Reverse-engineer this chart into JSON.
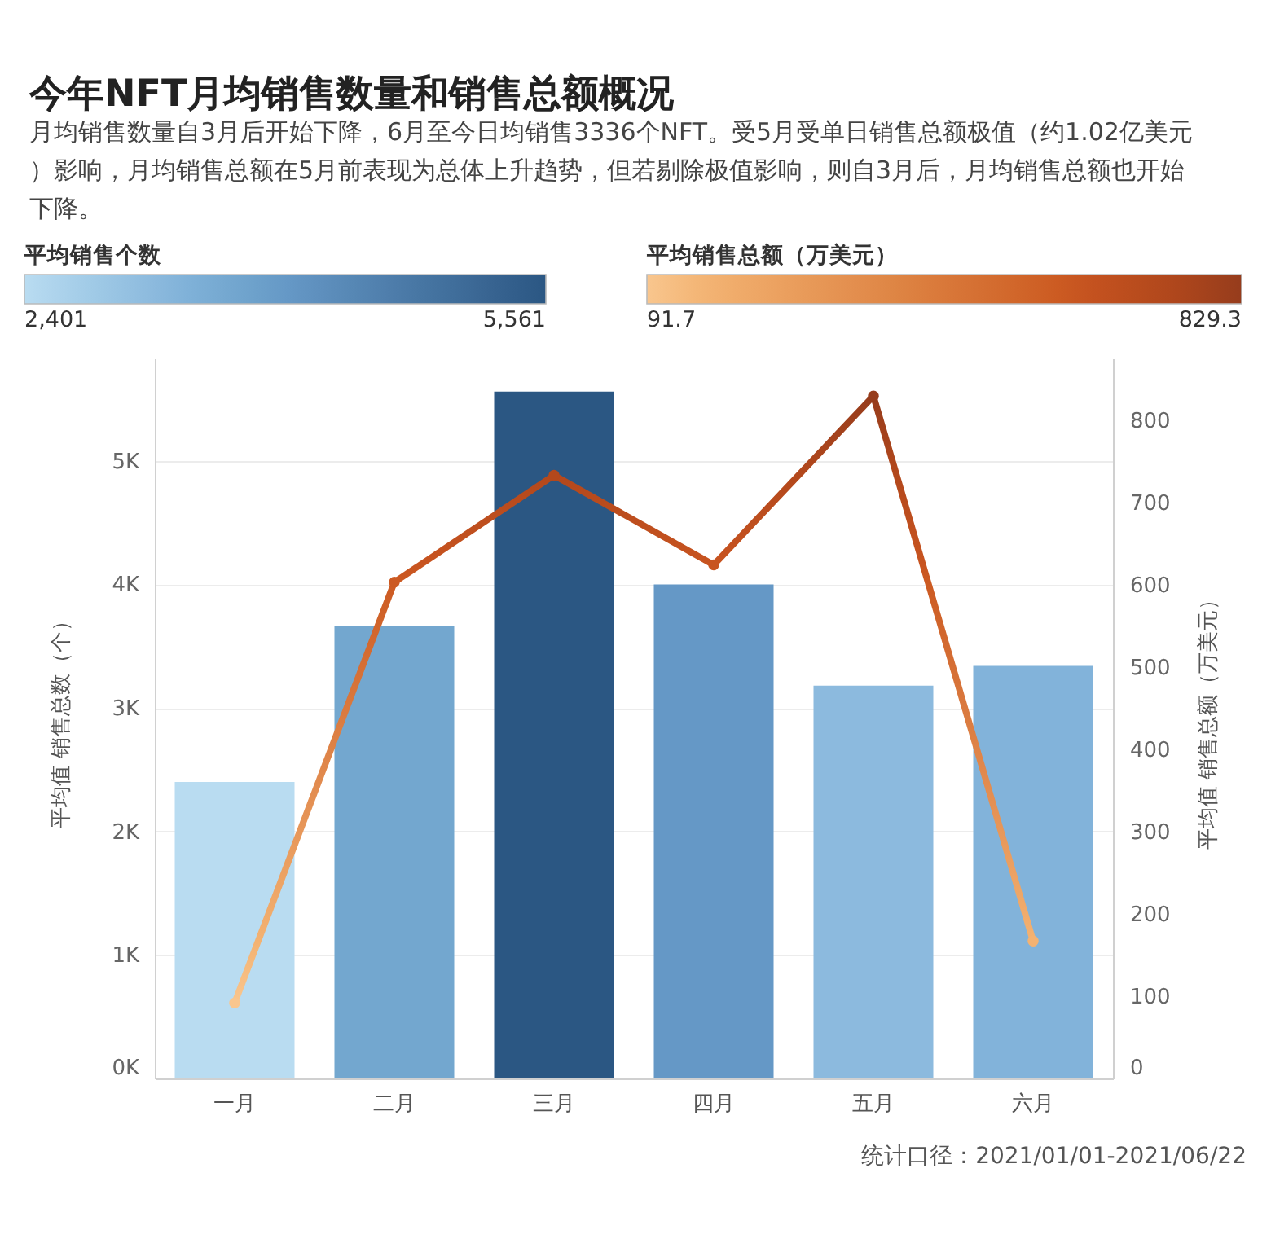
{
  "chart_data": {
    "type": "bar",
    "title": "今年NFT月均销售数量和销售总额概况",
    "subtitle": "月均销售数量自3月后开始下降，6月至今日均销售3336个NFT。受5月受单日销售总额极值（约1.02亿美元）影响，月均销售总额在5月前表现为总体上升趋势，但若剔除极值影响，则自3月后，月均销售总额也开始下降。",
    "categories": [
      "一月",
      "二月",
      "三月",
      "四月",
      "五月",
      "六月"
    ],
    "series": [
      {
        "values": [
          2401,
          3660,
          5561,
          4000,
          3180,
          3340
        ],
        "colors": [
          "#b9dcf1",
          "#73a7cf",
          "#2b5783",
          "#6598c6",
          "#8cbade",
          "#82b3da"
        ]
      },
      {
        "name": "平均销售总额（万美元）",
        "type": "line",
        "axis": "y2",
        "values": [
          91.7,
          603,
          733,
          624,
          829.3,
          167
        ],
        "colors": [
          "#f9c68e",
          "#cc5a22",
          "#b3481c",
          "#c85420",
          "#963c1c",
          "#f3b272"
        ]
      }
    ],
    "clabel": "平均销售个数",
    "clim": [
      2401,
      5561
    ],
    "cticks": [
      {
        "value": 2401,
        "label": "2,401"
      },
      {
        "value": 5561,
        "label": "5,561"
      }
    ],
    "ylabel": "平均值 销售总数（个）",
    "y2label": "平均值 销售总额（万美元）",
    "ylim": [
      0,
      5830
    ],
    "yticks": [
      {
        "value": 0,
        "label": "0K"
      },
      {
        "value": 1000,
        "label": "1K"
      },
      {
        "value": 2000,
        "label": "2K"
      },
      {
        "value": 3000,
        "label": "3K"
      },
      {
        "value": 4000,
        "label": "4K"
      },
      {
        "value": 5000,
        "label": "5K"
      }
    ],
    "y2lim": [
      0,
      875
    ],
    "y2ticks": [
      0,
      100,
      200,
      300,
      400,
      500,
      600,
      700,
      800
    ],
    "grid": "y",
    "legend": "top",
    "marker": "circle",
    "line_style": "solid",
    "annotations": [
      "91.7",
      "829.3",
      "统计口径：2021/01/01-2021/06/22"
    ]
  }
}
